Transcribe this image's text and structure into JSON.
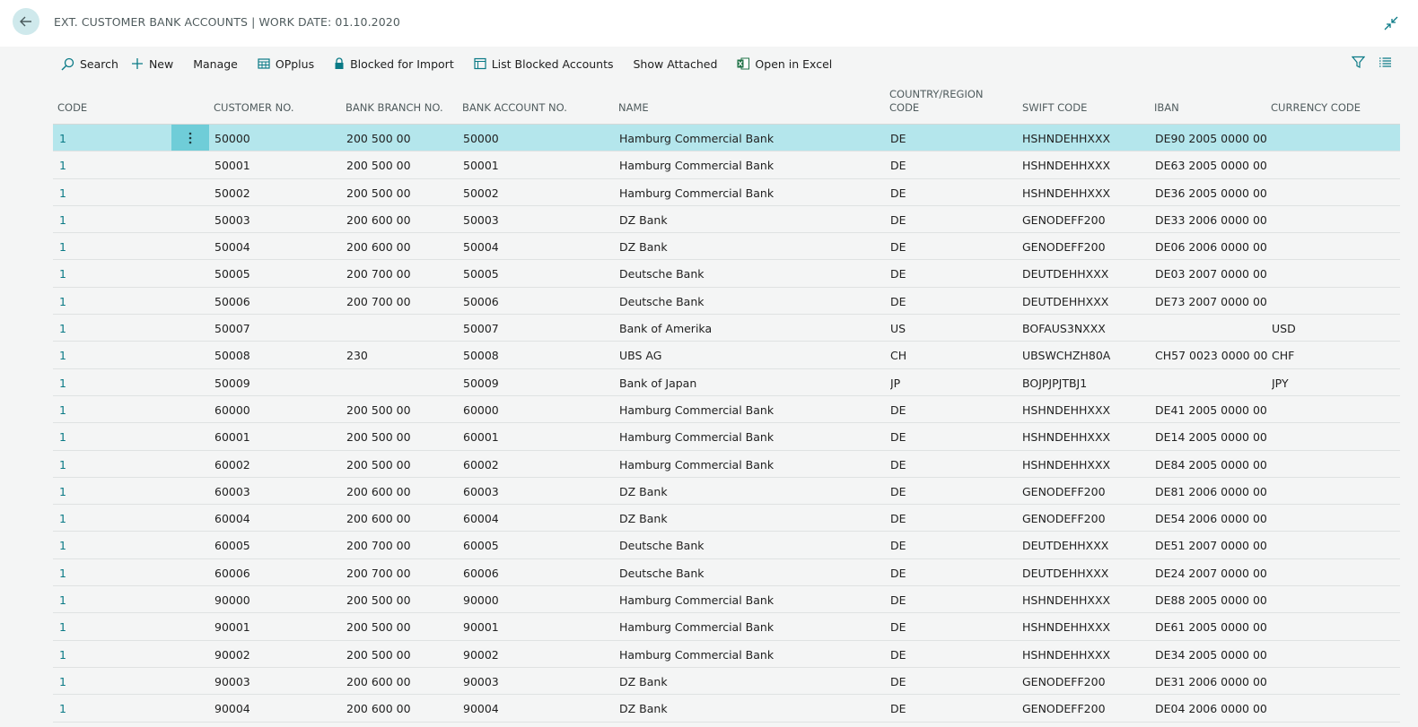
{
  "page": {
    "title": "EXT. CUSTOMER BANK ACCOUNTS | WORK DATE: 01.10.2020"
  },
  "actions": {
    "search": "Search",
    "new": "New",
    "manage": "Manage",
    "opplus": "OPplus",
    "blocked_import": "Blocked for Import",
    "list_blocked": "List Blocked Accounts",
    "show_attached": "Show Attached",
    "open_excel": "Open in Excel"
  },
  "columns": {
    "code": "CODE",
    "customer_no": "CUSTOMER NO.",
    "bank_branch_no": "BANK BRANCH NO.",
    "bank_account_no": "BANK ACCOUNT NO.",
    "name": "NAME",
    "country_line1": "COUNTRY/REGION",
    "country_line2": "CODE",
    "swift": "SWIFT CODE",
    "iban": "IBAN",
    "currency": "CURRENCY CODE"
  },
  "colors": {
    "accent": "#0a7a86",
    "selected_row": "#b4e6ec",
    "row_menu": "#6fcdd8",
    "excel_green": "#1e7145"
  },
  "rows": [
    {
      "code": "1",
      "customer_no": "50000",
      "branch": "200 500 00",
      "account": "50000",
      "name": "Hamburg Commercial Bank",
      "country": "DE",
      "swift": "HSHNDEHHXXX",
      "iban": "DE90 2005 0000 00...",
      "currency": ""
    },
    {
      "code": "1",
      "customer_no": "50001",
      "branch": "200 500 00",
      "account": "50001",
      "name": "Hamburg Commercial Bank",
      "country": "DE",
      "swift": "HSHNDEHHXXX",
      "iban": "DE63 2005 0000 00...",
      "currency": ""
    },
    {
      "code": "1",
      "customer_no": "50002",
      "branch": "200 500 00",
      "account": "50002",
      "name": "Hamburg Commercial Bank",
      "country": "DE",
      "swift": "HSHNDEHHXXX",
      "iban": "DE36 2005 0000 00...",
      "currency": ""
    },
    {
      "code": "1",
      "customer_no": "50003",
      "branch": "200 600 00",
      "account": "50003",
      "name": "DZ Bank",
      "country": "DE",
      "swift": "GENODEFF200",
      "iban": "DE33 2006 0000 00...",
      "currency": ""
    },
    {
      "code": "1",
      "customer_no": "50004",
      "branch": "200 600 00",
      "account": "50004",
      "name": "DZ Bank",
      "country": "DE",
      "swift": "GENODEFF200",
      "iban": "DE06 2006 0000 00...",
      "currency": ""
    },
    {
      "code": "1",
      "customer_no": "50005",
      "branch": "200 700 00",
      "account": "50005",
      "name": "Deutsche Bank",
      "country": "DE",
      "swift": "DEUTDEHHXXX",
      "iban": "DE03 2007 0000 00...",
      "currency": ""
    },
    {
      "code": "1",
      "customer_no": "50006",
      "branch": "200 700 00",
      "account": "50006",
      "name": "Deutsche Bank",
      "country": "DE",
      "swift": "DEUTDEHHXXX",
      "iban": "DE73 2007 0000 00...",
      "currency": ""
    },
    {
      "code": "1",
      "customer_no": "50007",
      "branch": "",
      "account": "50007",
      "name": "Bank of Amerika",
      "country": "US",
      "swift": "BOFAUS3NXXX",
      "iban": "",
      "currency": "USD"
    },
    {
      "code": "1",
      "customer_no": "50008",
      "branch": "230",
      "account": "50008",
      "name": "UBS AG",
      "country": "CH",
      "swift": "UBSWCHZH80A",
      "iban": "CH57 0023 0000 00...",
      "currency": "CHF"
    },
    {
      "code": "1",
      "customer_no": "50009",
      "branch": "",
      "account": "50009",
      "name": "Bank of Japan",
      "country": "JP",
      "swift": "BOJPJPJTBJ1",
      "iban": "",
      "currency": "JPY"
    },
    {
      "code": "1",
      "customer_no": "60000",
      "branch": "200 500 00",
      "account": "60000",
      "name": "Hamburg Commercial Bank",
      "country": "DE",
      "swift": "HSHNDEHHXXX",
      "iban": "DE41 2005 0000 00...",
      "currency": ""
    },
    {
      "code": "1",
      "customer_no": "60001",
      "branch": "200 500 00",
      "account": "60001",
      "name": "Hamburg Commercial Bank",
      "country": "DE",
      "swift": "HSHNDEHHXXX",
      "iban": "DE14 2005 0000 00...",
      "currency": ""
    },
    {
      "code": "1",
      "customer_no": "60002",
      "branch": "200 500 00",
      "account": "60002",
      "name": "Hamburg Commercial Bank",
      "country": "DE",
      "swift": "HSHNDEHHXXX",
      "iban": "DE84 2005 0000 00...",
      "currency": ""
    },
    {
      "code": "1",
      "customer_no": "60003",
      "branch": "200 600 00",
      "account": "60003",
      "name": "DZ Bank",
      "country": "DE",
      "swift": "GENODEFF200",
      "iban": "DE81 2006 0000 00...",
      "currency": ""
    },
    {
      "code": "1",
      "customer_no": "60004",
      "branch": "200 600 00",
      "account": "60004",
      "name": "DZ Bank",
      "country": "DE",
      "swift": "GENODEFF200",
      "iban": "DE54 2006 0000 00...",
      "currency": ""
    },
    {
      "code": "1",
      "customer_no": "60005",
      "branch": "200 700 00",
      "account": "60005",
      "name": "Deutsche Bank",
      "country": "DE",
      "swift": "DEUTDEHHXXX",
      "iban": "DE51 2007 0000 00...",
      "currency": ""
    },
    {
      "code": "1",
      "customer_no": "60006",
      "branch": "200 700 00",
      "account": "60006",
      "name": "Deutsche Bank",
      "country": "DE",
      "swift": "DEUTDEHHXXX",
      "iban": "DE24 2007 0000 00...",
      "currency": ""
    },
    {
      "code": "1",
      "customer_no": "90000",
      "branch": "200 500 00",
      "account": "90000",
      "name": "Hamburg Commercial Bank",
      "country": "DE",
      "swift": "HSHNDEHHXXX",
      "iban": "DE88 2005 0000 00...",
      "currency": ""
    },
    {
      "code": "1",
      "customer_no": "90001",
      "branch": "200 500 00",
      "account": "90001",
      "name": "Hamburg Commercial Bank",
      "country": "DE",
      "swift": "HSHNDEHHXXX",
      "iban": "DE61 2005 0000 00...",
      "currency": ""
    },
    {
      "code": "1",
      "customer_no": "90002",
      "branch": "200 500 00",
      "account": "90002",
      "name": "Hamburg Commercial Bank",
      "country": "DE",
      "swift": "HSHNDEHHXXX",
      "iban": "DE34 2005 0000 00...",
      "currency": ""
    },
    {
      "code": "1",
      "customer_no": "90003",
      "branch": "200 600 00",
      "account": "90003",
      "name": "DZ Bank",
      "country": "DE",
      "swift": "GENODEFF200",
      "iban": "DE31 2006 0000 00...",
      "currency": ""
    },
    {
      "code": "1",
      "customer_no": "90004",
      "branch": "200 600 00",
      "account": "90004",
      "name": "DZ Bank",
      "country": "DE",
      "swift": "GENODEFF200",
      "iban": "DE04 2006 0000 00...",
      "currency": ""
    }
  ]
}
